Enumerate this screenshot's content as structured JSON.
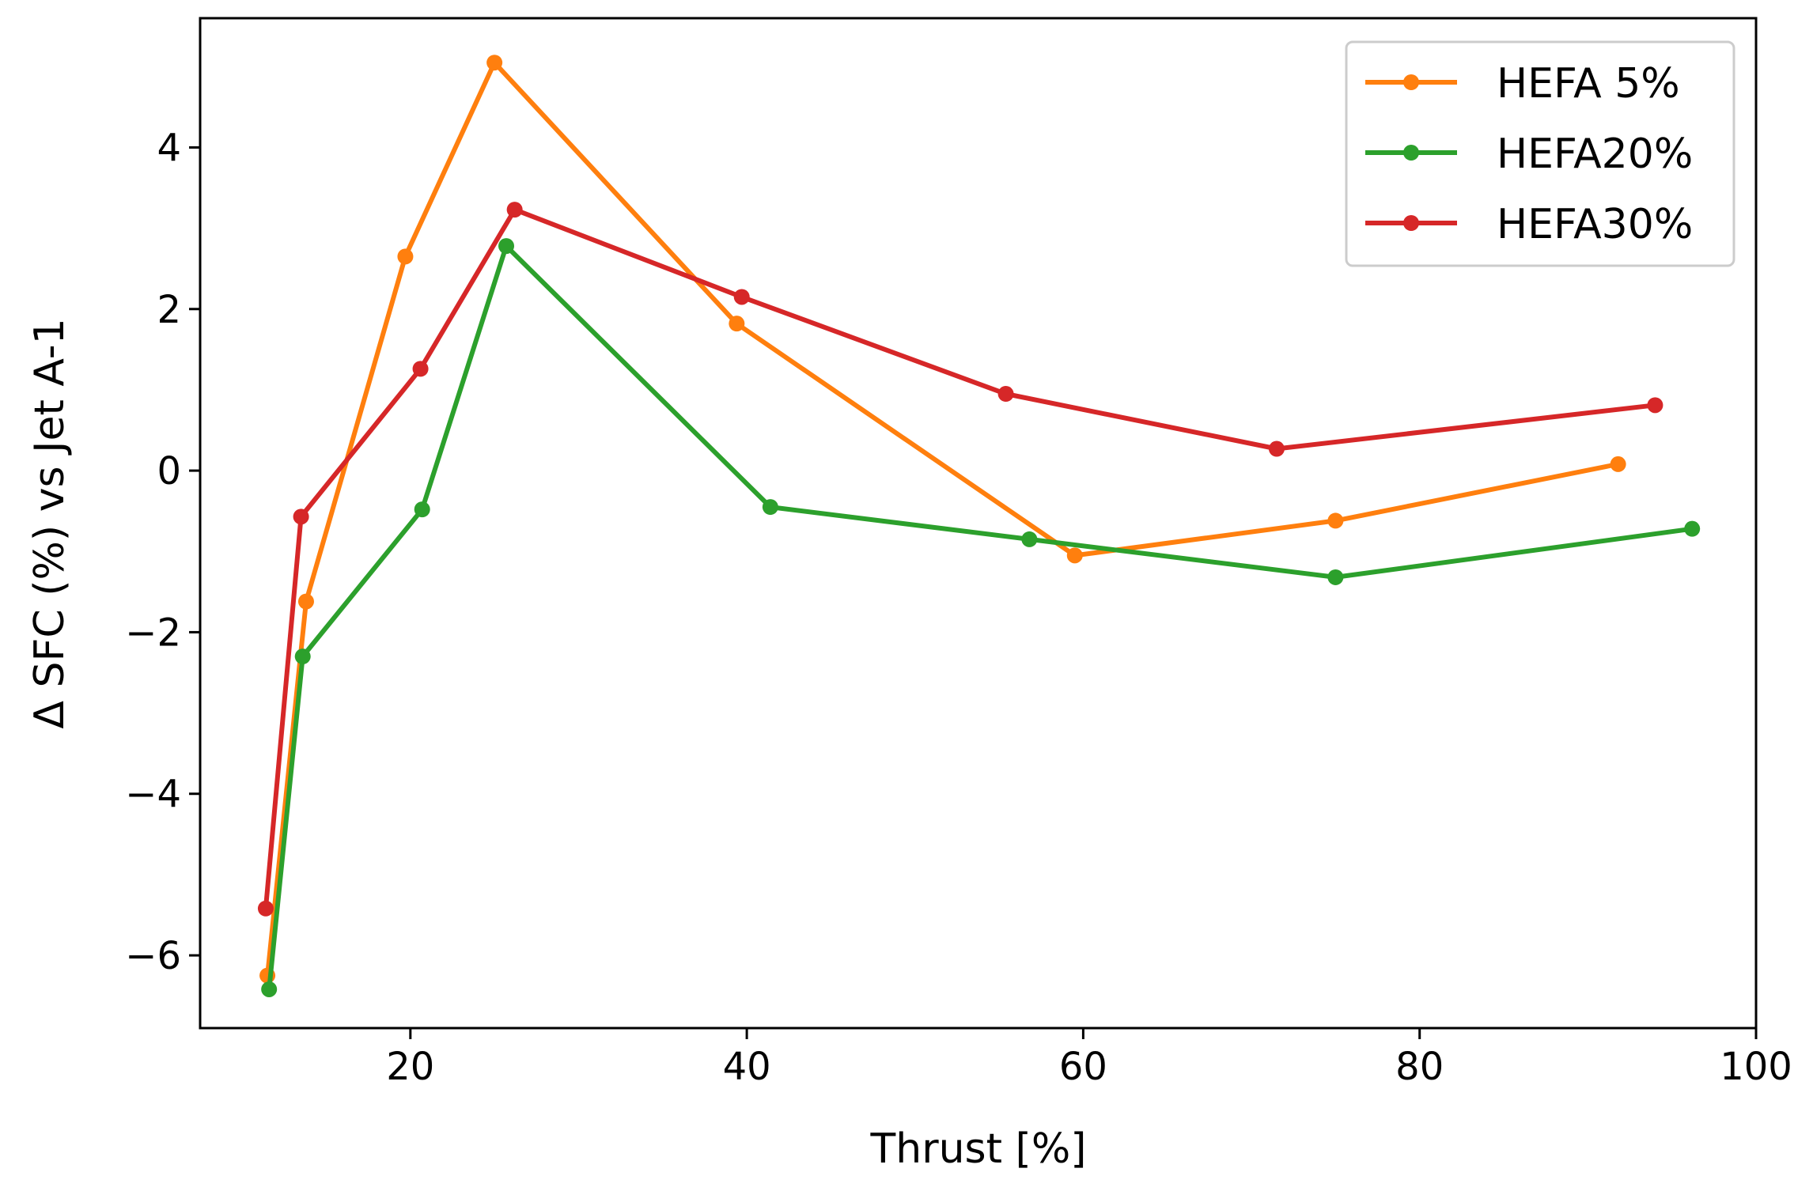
{
  "chart_data": {
    "type": "line",
    "title": "",
    "xlabel": "Thrust [%]",
    "ylabel": "Δ SFC (%) vs Jet A-1",
    "xlim": [
      7.5,
      100
    ],
    "ylim": [
      -6.9,
      5.6
    ],
    "xticks": [
      20,
      40,
      60,
      80,
      100
    ],
    "yticks": [
      -6,
      -4,
      -2,
      0,
      2,
      4
    ],
    "xtick_labels": [
      "20",
      "40",
      "60",
      "80",
      "100"
    ],
    "ytick_labels": [
      "−6",
      "−4",
      "−2",
      "0",
      "2",
      "4"
    ],
    "grid": false,
    "legend_position": "top-right",
    "series": [
      {
        "name": "HEFA 5%",
        "color": "#ff7f0e",
        "x": [
          11.5,
          13.8,
          19.7,
          25.0,
          39.4,
          59.5,
          75.0,
          91.8
        ],
        "y": [
          -6.25,
          -1.62,
          2.65,
          5.05,
          1.82,
          -1.05,
          -0.62,
          0.08
        ]
      },
      {
        "name": "HEFA20%",
        "color": "#2ca02c",
        "x": [
          11.6,
          13.6,
          20.7,
          25.7,
          41.4,
          56.8,
          75.0,
          96.2
        ],
        "y": [
          -6.42,
          -2.3,
          -0.48,
          2.78,
          -0.45,
          -0.85,
          -1.32,
          -0.72
        ]
      },
      {
        "name": "HEFA30%",
        "color": "#d62728",
        "x": [
          11.4,
          13.5,
          20.6,
          26.2,
          39.7,
          55.4,
          71.5,
          94.0
        ],
        "y": [
          -5.42,
          -0.57,
          1.26,
          3.23,
          2.15,
          0.95,
          0.27,
          0.81
        ]
      }
    ]
  }
}
